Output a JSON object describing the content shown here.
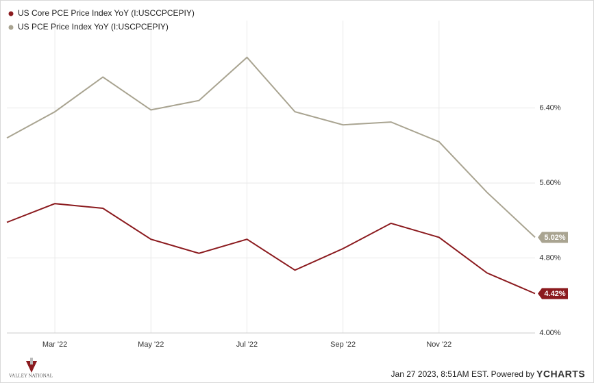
{
  "chart_data": {
    "type": "line",
    "categories": [
      null,
      "Mar '22",
      null,
      "May '22",
      null,
      "Jul '22",
      null,
      "Sep '22",
      null,
      "Nov '22",
      null,
      null
    ],
    "series": [
      {
        "name": "US Core PCE Price Index YoY (I:USCCPCEPIY)",
        "color": "#8b1a1e",
        "values": [
          5.18,
          5.38,
          5.33,
          5.0,
          4.85,
          5.0,
          4.67,
          4.9,
          5.17,
          5.02,
          4.64,
          4.42
        ],
        "value_labels": [
          null,
          null,
          null,
          null,
          null,
          null,
          null,
          null,
          null,
          null,
          null,
          "4.42%"
        ]
      },
      {
        "name": "US PCE Price Index YoY (I:USCPCEPIY)",
        "color": "#a9a491",
        "values": [
          6.08,
          6.36,
          6.73,
          6.38,
          6.48,
          6.94,
          6.36,
          6.22,
          6.25,
          6.04,
          5.5,
          5.02
        ],
        "value_labels": [
          null,
          null,
          null,
          null,
          null,
          null,
          null,
          null,
          null,
          null,
          null,
          "5.02%"
        ]
      }
    ],
    "ylim": [
      4,
      7.15
    ],
    "yticks": [
      {
        "value": 4,
        "label": "4.00%"
      },
      {
        "value": 4.8,
        "label": "4.80%"
      },
      {
        "value": 5.6,
        "label": "5.60%"
      },
      {
        "value": 6.4,
        "label": "6.40%"
      }
    ],
    "grid": true
  },
  "footer": {
    "timestamp": "Jan 27 2023, 8:51AM EST.  Powered by",
    "brand": "YCHARTS",
    "logo": "VALLEY NATIONAL"
  }
}
